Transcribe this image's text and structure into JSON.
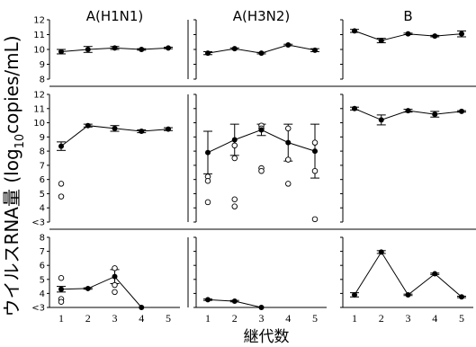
{
  "chart_data": {
    "type": "line",
    "xlabel": "継代数",
    "ylabel_main": "ウイルスRNA量 (log",
    "ylabel_sub": "10",
    "ylabel_end": "copies/mL)",
    "x": [
      1,
      2,
      3,
      4,
      5
    ],
    "x_tick_labels": [
      "1",
      "2",
      "3",
      "4",
      "5"
    ],
    "columns": [
      "A(H1N1)",
      "A(H3N2)",
      "B"
    ],
    "rows": [
      {
        "ylim": [
          8,
          12
        ],
        "y_ticks": [
          8,
          9,
          10,
          11,
          12
        ],
        "y_tick_labels": [
          "8",
          "9",
          "10",
          "11",
          "12"
        ],
        "panels": [
          {
            "means": [
              9.85,
              10.0,
              10.1,
              10.0,
              10.1
            ],
            "errs": [
              0.15,
              0.2,
              0.1,
              0.05,
              0.05
            ],
            "open": []
          },
          {
            "means": [
              9.75,
              10.05,
              9.75,
              10.3,
              9.95
            ],
            "errs": [
              0.1,
              0.05,
              0.05,
              0.05,
              0.1
            ],
            "open": []
          },
          {
            "means": [
              11.25,
              10.6,
              11.05,
              10.9,
              11.05
            ],
            "errs": [
              0.1,
              0.15,
              0.05,
              0.05,
              0.2
            ],
            "open": []
          }
        ]
      },
      {
        "ylim": [
          3,
          12
        ],
        "y_ticks": [
          3,
          4,
          5,
          6,
          7,
          8,
          9,
          10,
          11,
          12
        ],
        "y_tick_labels": [
          "<3",
          "4",
          "5",
          "6",
          "7",
          "8",
          "9",
          "10",
          "11",
          "12"
        ],
        "panels": [
          {
            "means": [
              8.35,
              9.8,
              9.6,
              9.4,
              9.55
            ],
            "errs": [
              0.3,
              0.1,
              0.2,
              0.1,
              0.1
            ],
            "open": [
              [
                1,
                5.7
              ],
              [
                1,
                4.8
              ]
            ]
          },
          {
            "means": [
              7.9,
              8.8,
              9.5,
              8.6,
              8.0
            ],
            "errs": [
              1.5,
              1.1,
              0.4,
              1.3,
              1.9
            ],
            "open": [
              [
                1,
                6.2
              ],
              [
                1,
                5.9
              ],
              [
                1,
                4.4
              ],
              [
                2,
                8.4
              ],
              [
                2,
                7.5
              ],
              [
                2,
                4.6
              ],
              [
                2,
                4.1
              ],
              [
                3,
                9.8
              ],
              [
                3,
                9.6
              ],
              [
                3,
                6.8
              ],
              [
                3,
                6.6
              ],
              [
                4,
                9.6
              ],
              [
                4,
                7.4
              ],
              [
                4,
                5.7
              ],
              [
                5,
                8.6
              ],
              [
                5,
                6.6
              ],
              [
                5,
                3.2
              ]
            ]
          },
          {
            "means": [
              11.0,
              10.2,
              10.85,
              10.6,
              10.8
            ],
            "errs": [
              0.1,
              0.35,
              0.1,
              0.2,
              0.05
            ],
            "open": []
          }
        ]
      },
      {
        "ylim": [
          3,
          8
        ],
        "y_ticks": [
          3,
          4,
          5,
          6,
          7,
          8
        ],
        "y_tick_labels": [
          "<3",
          "4",
          "5",
          "6",
          "7",
          "8"
        ],
        "panels": [
          {
            "means": [
              4.3,
              4.35,
              5.2,
              3.0,
              null
            ],
            "errs": [
              0.2,
              0.05,
              0.5,
              0,
              null
            ],
            "open": [
              [
                1,
                5.1
              ],
              [
                1,
                3.6
              ],
              [
                1,
                3.4
              ],
              [
                3,
                5.8
              ],
              [
                3,
                4.6
              ],
              [
                3,
                4.1
              ]
            ]
          },
          {
            "means": [
              3.55,
              3.45,
              3.0,
              null,
              null
            ],
            "errs": [
              0.05,
              0.05,
              0,
              null,
              null
            ],
            "open": []
          },
          {
            "means": [
              3.9,
              6.95,
              3.9,
              5.4,
              3.75
            ],
            "errs": [
              0.15,
              0.1,
              0.05,
              0.05,
              0.05
            ],
            "open": []
          }
        ]
      }
    ]
  }
}
